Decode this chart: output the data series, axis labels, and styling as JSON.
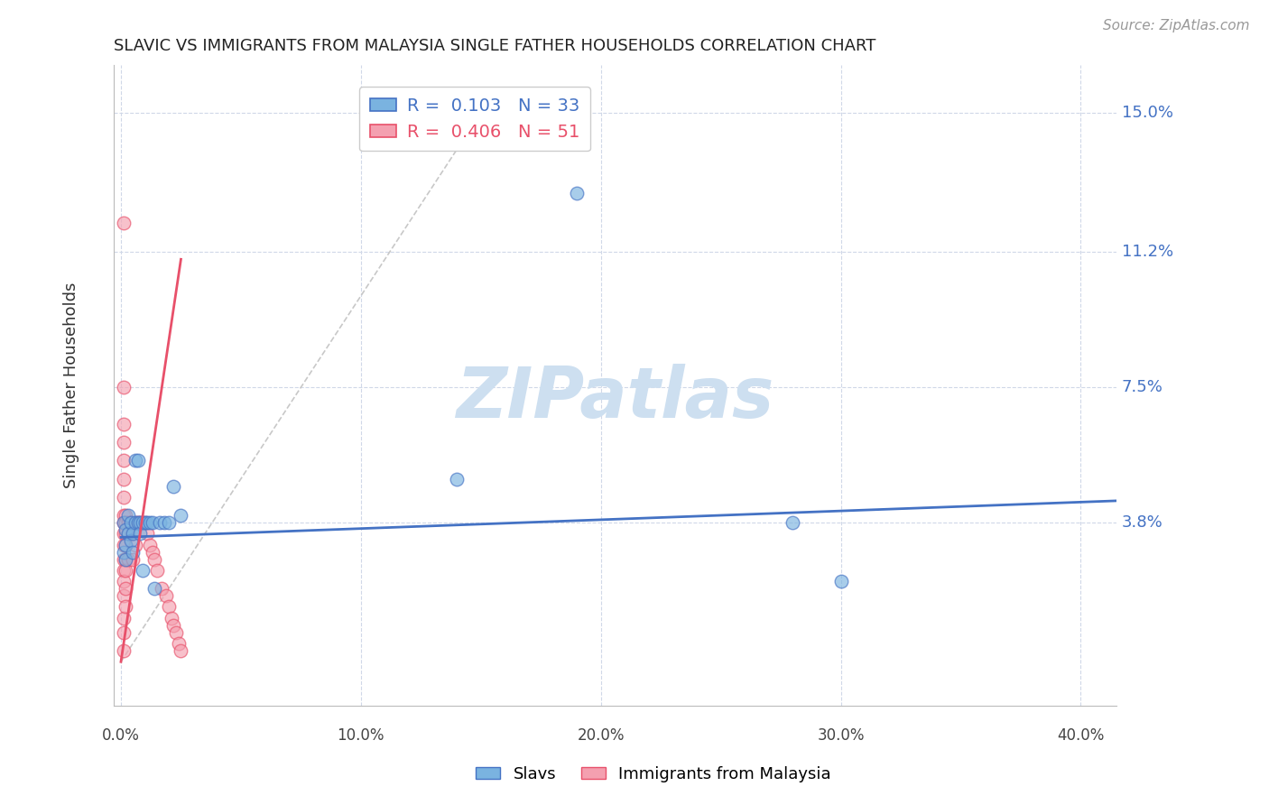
{
  "title": "SLAVIC VS IMMIGRANTS FROM MALAYSIA SINGLE FATHER HOUSEHOLDS CORRELATION CHART",
  "source": "Source: ZipAtlas.com",
  "xlabel_ticks": [
    "0.0%",
    "10.0%",
    "20.0%",
    "30.0%",
    "40.0%"
  ],
  "xlabel_tick_vals": [
    0.0,
    0.1,
    0.2,
    0.3,
    0.4
  ],
  "ylabel": "Single Father Households",
  "ylabel_ticks": [
    "15.0%",
    "11.2%",
    "7.5%",
    "3.8%"
  ],
  "ylabel_tick_vals": [
    0.15,
    0.112,
    0.075,
    0.038
  ],
  "xlim": [
    -0.003,
    0.415
  ],
  "ylim": [
    -0.012,
    0.163
  ],
  "legend1_label": "R =  0.103   N = 33",
  "legend2_label": "R =  0.406   N = 51",
  "slav_color": "#7ab3e0",
  "malaysia_color": "#f4a0b0",
  "slav_trendline_color": "#4472c4",
  "malaysia_trendline_color": "#e8506a",
  "diagonal_color": "#c8c8c8",
  "background_color": "#ffffff",
  "grid_color": "#d0d8e8",
  "watermark_color": "#cddff0",
  "slavs_x": [
    0.001,
    0.001,
    0.002,
    0.002,
    0.002,
    0.003,
    0.003,
    0.004,
    0.004,
    0.005,
    0.005,
    0.006,
    0.006,
    0.007,
    0.007,
    0.008,
    0.008,
    0.009,
    0.009,
    0.01,
    0.011,
    0.012,
    0.013,
    0.014,
    0.016,
    0.018,
    0.02,
    0.022,
    0.025,
    0.14,
    0.19,
    0.28,
    0.3
  ],
  "slavs_y": [
    0.038,
    0.03,
    0.036,
    0.032,
    0.028,
    0.04,
    0.035,
    0.038,
    0.033,
    0.035,
    0.03,
    0.038,
    0.055,
    0.038,
    0.055,
    0.038,
    0.035,
    0.025,
    0.038,
    0.038,
    0.038,
    0.038,
    0.038,
    0.02,
    0.038,
    0.038,
    0.038,
    0.048,
    0.04,
    0.05,
    0.128,
    0.038,
    0.022
  ],
  "malaysia_x": [
    0.001,
    0.001,
    0.001,
    0.001,
    0.001,
    0.001,
    0.001,
    0.001,
    0.001,
    0.001,
    0.001,
    0.001,
    0.001,
    0.001,
    0.001,
    0.001,
    0.001,
    0.001,
    0.002,
    0.002,
    0.002,
    0.002,
    0.002,
    0.002,
    0.002,
    0.002,
    0.003,
    0.003,
    0.003,
    0.004,
    0.005,
    0.005,
    0.006,
    0.006,
    0.007,
    0.008,
    0.009,
    0.01,
    0.011,
    0.012,
    0.013,
    0.014,
    0.015,
    0.017,
    0.019,
    0.02,
    0.021,
    0.022,
    0.023,
    0.024,
    0.025
  ],
  "malaysia_y": [
    0.12,
    0.075,
    0.065,
    0.06,
    0.055,
    0.05,
    0.045,
    0.04,
    0.038,
    0.035,
    0.032,
    0.028,
    0.025,
    0.022,
    0.018,
    0.012,
    0.008,
    0.003,
    0.04,
    0.038,
    0.035,
    0.032,
    0.028,
    0.025,
    0.02,
    0.015,
    0.038,
    0.035,
    0.028,
    0.038,
    0.035,
    0.028,
    0.038,
    0.032,
    0.038,
    0.038,
    0.038,
    0.038,
    0.035,
    0.032,
    0.03,
    0.028,
    0.025,
    0.02,
    0.018,
    0.015,
    0.012,
    0.01,
    0.008,
    0.005,
    0.003
  ],
  "slav_trend_x": [
    0.0,
    0.415
  ],
  "slav_trend_y": [
    0.034,
    0.044
  ],
  "malaysia_trend_x": [
    0.0,
    0.025
  ],
  "malaysia_trend_y": [
    0.0,
    0.11
  ]
}
